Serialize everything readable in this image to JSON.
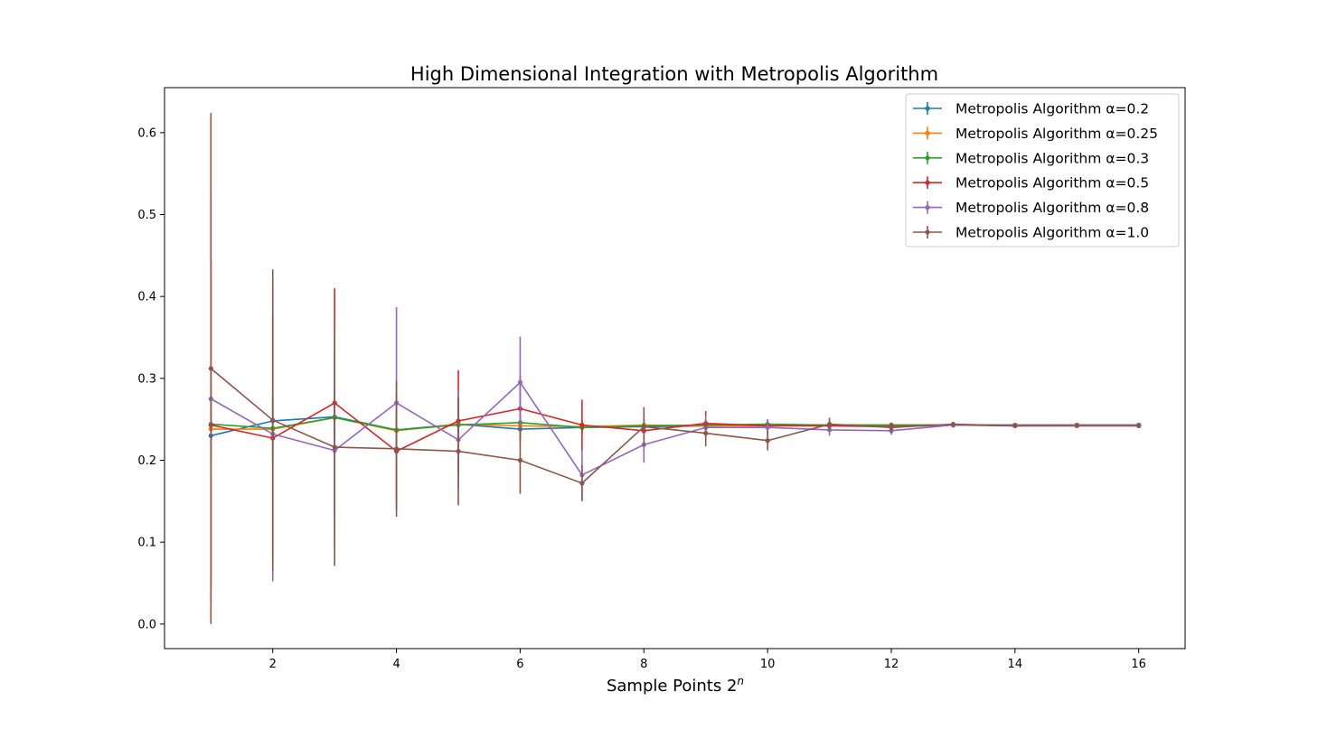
{
  "chart_data": {
    "type": "line",
    "title": "High Dimensional Integration with Metropolis Algorithm",
    "xlabel_main": "Sample Points  2",
    "xlabel_sup": "n",
    "ylabel": "",
    "xlim": [
      0.25,
      16.75
    ],
    "ylim": [
      -0.03,
      0.655
    ],
    "xticks": [
      2,
      4,
      6,
      8,
      10,
      12,
      14,
      16
    ],
    "yticks": [
      0.0,
      0.1,
      0.2,
      0.3,
      0.4,
      0.5,
      0.6
    ],
    "grid": false,
    "legend_position": "top-right",
    "x": [
      1,
      2,
      3,
      4,
      5,
      6,
      7,
      8,
      9,
      10,
      11,
      12,
      13,
      14,
      15,
      16
    ],
    "series": [
      {
        "name": "Metropolis Algorithm α=0.2",
        "color": "#1f77b4",
        "values": [
          0.23,
          0.248,
          0.253,
          0.237,
          0.244,
          0.238,
          0.24,
          0.241,
          0.242,
          0.243,
          0.243,
          0.243,
          0.243,
          0.243,
          0.243,
          0.243
        ],
        "errors": [
          0.03,
          0.03,
          0.02,
          0.015,
          0.012,
          0.01,
          0.008,
          0.006,
          0.004,
          0.003,
          0.002,
          0.0015,
          0.001,
          0.001,
          0.0005,
          0.0005
        ]
      },
      {
        "name": "Metropolis Algorithm α=0.25",
        "color": "#ff7f0e",
        "values": [
          0.238,
          0.238,
          0.252,
          0.236,
          0.244,
          0.242,
          0.241,
          0.243,
          0.242,
          0.242,
          0.243,
          0.243,
          0.243,
          0.243,
          0.243,
          0.243
        ],
        "errors": [
          0.04,
          0.035,
          0.025,
          0.018,
          0.014,
          0.01,
          0.008,
          0.006,
          0.004,
          0.003,
          0.002,
          0.0015,
          0.001,
          0.001,
          0.0005,
          0.0005
        ]
      },
      {
        "name": "Metropolis Algorithm α=0.3",
        "color": "#2ca02c",
        "values": [
          0.244,
          0.239,
          0.252,
          0.237,
          0.243,
          0.246,
          0.24,
          0.242,
          0.243,
          0.244,
          0.243,
          0.243,
          0.243,
          0.243,
          0.243,
          0.243
        ],
        "errors": [
          0.05,
          0.04,
          0.03,
          0.02,
          0.015,
          0.012,
          0.008,
          0.006,
          0.005,
          0.003,
          0.002,
          0.0015,
          0.001,
          0.001,
          0.0005,
          0.0005
        ]
      },
      {
        "name": "Metropolis Algorithm α=0.5",
        "color": "#d62728",
        "values": [
          0.243,
          0.227,
          0.27,
          0.211,
          0.248,
          0.263,
          0.243,
          0.236,
          0.245,
          0.242,
          0.242,
          0.241,
          0.243,
          0.242,
          0.243,
          0.243
        ],
        "errors": [
          0.2,
          0.15,
          0.14,
          0.07,
          0.062,
          0.04,
          0.031,
          0.02,
          0.015,
          0.008,
          0.006,
          0.004,
          0.002,
          0.0015,
          0.001,
          0.001
        ]
      },
      {
        "name": "Metropolis Algorithm α=0.8",
        "color": "#9467bd",
        "values": [
          0.275,
          0.232,
          0.212,
          0.27,
          0.225,
          0.295,
          0.182,
          0.219,
          0.24,
          0.24,
          0.237,
          0.236,
          0.243,
          0.243,
          0.243,
          0.243
        ],
        "errors": [
          0.25,
          0.18,
          0.12,
          0.117,
          0.06,
          0.056,
          0.03,
          0.022,
          0.015,
          0.01,
          0.007,
          0.005,
          0.003,
          0.002,
          0.001,
          0.001
        ]
      },
      {
        "name": "Metropolis Algorithm α=1.0",
        "color": "#8c564b",
        "values": [
          0.312,
          0.249,
          0.216,
          0.214,
          0.211,
          0.2,
          0.172,
          0.241,
          0.233,
          0.224,
          0.244,
          0.24,
          0.244,
          0.242,
          0.242,
          0.242
        ],
        "errors": [
          0.312,
          0.184,
          0.145,
          0.083,
          0.066,
          0.041,
          0.022,
          0.024,
          0.016,
          0.012,
          0.008,
          0.006,
          0.003,
          0.002,
          0.001,
          0.001
        ]
      }
    ]
  }
}
